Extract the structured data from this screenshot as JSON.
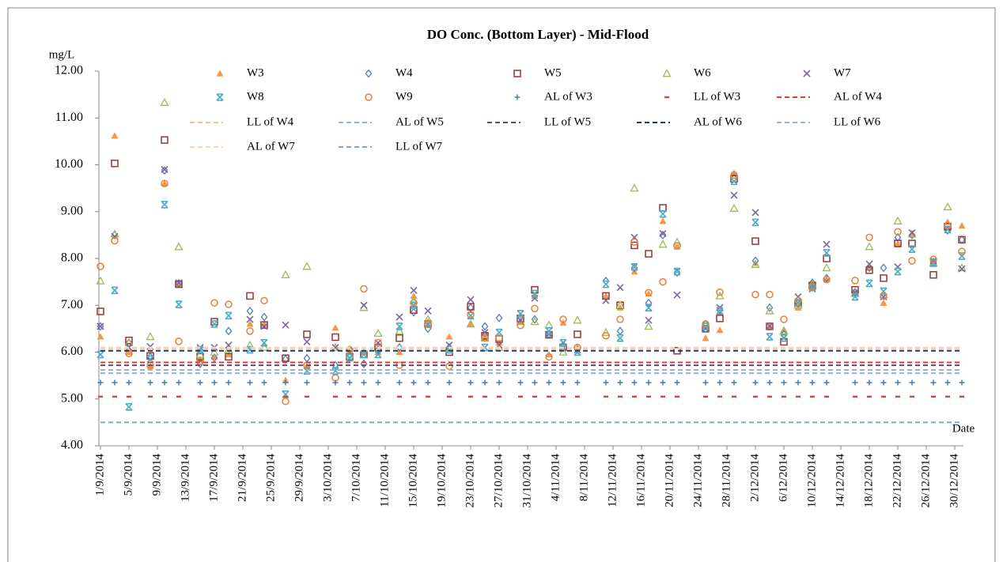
{
  "chart_data": {
    "type": "scatter",
    "title": "DO Conc. (Bottom Layer) - Mid-Flood",
    "y_label": "mg/L",
    "x_label": "Date",
    "xlim": [
      "1/9/2014",
      "31/12/2014"
    ],
    "xticks": [
      "1/9/2014",
      "5/9/2014",
      "9/9/2014",
      "13/9/2014",
      "17/9/2014",
      "21/9/2014",
      "25/9/2014",
      "29/9/2014",
      "3/10/2014",
      "7/10/2014",
      "11/10/2014",
      "15/10/2014",
      "19/10/2014",
      "23/10/2014",
      "27/10/2014",
      "31/10/2014",
      "4/11/2014",
      "8/11/2014",
      "12/11/2014",
      "16/11/2014",
      "20/11/2014",
      "24/11/2014",
      "28/11/2014",
      "2/12/2014",
      "6/12/2014",
      "10/12/2014",
      "14/12/2014",
      "18/12/2014",
      "22/12/2014",
      "26/12/2014",
      "30/12/2014"
    ],
    "ylim": [
      4,
      12
    ],
    "yticks": [
      {
        "value": 4,
        "label": "4.00"
      },
      {
        "value": 5,
        "label": "5.00"
      },
      {
        "value": 6,
        "label": "6.00"
      },
      {
        "value": 7,
        "label": "7.00"
      },
      {
        "value": 8,
        "label": "8.00"
      },
      {
        "value": 9,
        "label": "9.00"
      },
      {
        "value": 10,
        "label": "10.00"
      },
      {
        "value": 11,
        "label": "11.00"
      },
      {
        "value": 12,
        "label": "12.00"
      }
    ],
    "x": [
      "1/9/2014",
      "3/9/2014",
      "5/9/2014",
      "8/9/2014",
      "10/9/2014",
      "12/9/2014",
      "15/9/2014",
      "17/9/2014",
      "19/9/2014",
      "22/9/2014",
      "24/9/2014",
      "27/9/2014",
      "30/9/2014",
      "4/10/2014",
      "6/10/2014",
      "8/10/2014",
      "10/10/2014",
      "13/10/2014",
      "15/10/2014",
      "17/10/2014",
      "20/10/2014",
      "23/10/2014",
      "25/10/2014",
      "27/10/2014",
      "30/10/2014",
      "1/11/2014",
      "3/11/2014",
      "5/11/2014",
      "7/11/2014",
      "11/11/2014",
      "13/11/2014",
      "15/11/2014",
      "17/11/2014",
      "19/11/2014",
      "21/11/2014",
      "25/11/2014",
      "27/11/2014",
      "29/11/2014",
      "2/12/2014",
      "4/12/2014",
      "6/12/2014",
      "8/12/2014",
      "10/12/2014",
      "12/12/2014",
      "16/12/2014",
      "18/12/2014",
      "20/12/2014",
      "22/12/2014",
      "24/12/2014",
      "27/12/2014",
      "29/12/2014",
      "31/12/2014"
    ],
    "series": [
      {
        "name": "W3",
        "marker": "triangle-filled",
        "color": "#f79646",
        "values": [
          6.33,
          10.62,
          6.0,
          5.7,
          9.6,
          7.45,
          5.85,
          5.9,
          5.95,
          6.6,
          6.6,
          5.4,
          5.7,
          6.52,
          6.0,
          6.0,
          6.0,
          6.0,
          7.2,
          6.65,
          6.33,
          6.6,
          6.3,
          6.2,
          6.65,
          7.2,
          5.95,
          6.63,
          6.1,
          7.2,
          6.95,
          7.72,
          7.25,
          8.8,
          8.25,
          6.3,
          6.47,
          9.82,
          7.9,
          6.55,
          6.48,
          6.95,
          7.4,
          7.55,
          7.3,
          7.8,
          7.05,
          8.32,
          8.52,
          7.95,
          8.78,
          8.7
        ]
      },
      {
        "name": "W4",
        "marker": "diamond",
        "color": "#4f81bd",
        "values": [
          6.55,
          8.5,
          6.2,
          5.9,
          9.88,
          7.47,
          5.75,
          5.88,
          6.45,
          6.88,
          6.75,
          5.85,
          5.87,
          5.72,
          6.05,
          5.75,
          6.05,
          6.1,
          6.85,
          6.5,
          6.1,
          6.95,
          6.55,
          6.73,
          6.75,
          6.7,
          6.38,
          6.15,
          6.05,
          7.52,
          6.45,
          7.8,
          7.05,
          8.5,
          7.7,
          6.6,
          6.9,
          9.72,
          7.95,
          6.95,
          6.38,
          7.05,
          7.48,
          7.58,
          7.28,
          7.8,
          7.8,
          8.45,
          8.5,
          7.92,
          8.6,
          8.4
        ]
      },
      {
        "name": "W5",
        "marker": "square",
        "color": "#953735",
        "values": [
          6.87,
          10.03,
          6.25,
          5.92,
          10.53,
          7.45,
          5.9,
          6.65,
          5.9,
          7.2,
          6.58,
          5.87,
          6.38,
          6.32,
          5.9,
          5.95,
          6.1,
          6.3,
          6.9,
          6.6,
          6.0,
          6.97,
          6.35,
          6.28,
          6.72,
          7.33,
          6.37,
          6.1,
          6.38,
          7.2,
          7.0,
          8.28,
          8.1,
          9.08,
          6.03,
          6.5,
          6.72,
          9.7,
          8.37,
          6.55,
          6.22,
          7.05,
          7.42,
          8.0,
          7.33,
          7.75,
          7.58,
          8.32,
          8.32,
          7.65,
          8.68,
          8.4
        ]
      },
      {
        "name": "W6",
        "marker": "triangle",
        "color": "#9bbb59",
        "values": [
          7.52,
          8.52,
          6.2,
          6.33,
          11.33,
          8.25,
          5.95,
          6.0,
          6.05,
          6.15,
          6.1,
          7.65,
          7.83,
          6.1,
          5.95,
          6.95,
          6.4,
          6.45,
          7.1,
          6.7,
          6.05,
          6.6,
          6.3,
          6.1,
          6.65,
          6.65,
          6.58,
          6.0,
          6.68,
          6.42,
          7.0,
          9.5,
          6.55,
          8.3,
          8.35,
          6.6,
          7.2,
          9.07,
          7.87,
          6.88,
          6.45,
          7.0,
          7.45,
          7.8,
          7.25,
          8.25,
          7.22,
          8.8,
          8.52,
          7.9,
          9.1,
          7.8
        ]
      },
      {
        "name": "W7",
        "marker": "x",
        "color": "#8064a2",
        "values": [
          6.55,
          8.47,
          6.1,
          6.12,
          9.9,
          7.48,
          6.1,
          6.1,
          6.15,
          6.7,
          6.55,
          6.58,
          6.22,
          6.1,
          5.98,
          7.0,
          6.2,
          6.75,
          7.32,
          6.88,
          6.15,
          7.12,
          6.42,
          6.15,
          6.68,
          7.15,
          6.38,
          6.1,
          6.05,
          7.1,
          7.38,
          8.45,
          6.68,
          8.53,
          7.22,
          6.5,
          6.95,
          9.35,
          8.98,
          6.55,
          6.3,
          7.18,
          7.35,
          8.3,
          7.27,
          7.88,
          7.18,
          7.82,
          8.55,
          7.95,
          8.62,
          7.78
        ]
      },
      {
        "name": "W8",
        "marker": "asterisk",
        "color": "#4bacc6",
        "values": [
          5.95,
          7.32,
          4.83,
          5.85,
          9.15,
          7.02,
          6.05,
          6.6,
          6.78,
          6.05,
          6.2,
          5.1,
          5.6,
          5.6,
          5.88,
          5.95,
          5.95,
          6.55,
          7.0,
          6.6,
          6.05,
          6.78,
          6.1,
          6.42,
          6.82,
          7.25,
          6.45,
          6.2,
          6.0,
          7.45,
          6.3,
          7.82,
          6.95,
          8.95,
          7.72,
          6.55,
          6.88,
          9.65,
          8.77,
          6.33,
          6.3,
          7.05,
          7.38,
          8.12,
          7.18,
          7.47,
          7.3,
          7.72,
          8.2,
          7.9,
          8.62,
          8.05
        ]
      },
      {
        "name": "W9",
        "marker": "circle",
        "color": "#e4803a",
        "values": [
          7.83,
          8.38,
          5.97,
          5.72,
          9.6,
          6.23,
          5.8,
          7.05,
          7.02,
          6.45,
          7.1,
          4.95,
          5.72,
          5.45,
          6.05,
          7.35,
          6.2,
          5.72,
          7.05,
          6.6,
          5.7,
          6.8,
          6.3,
          6.3,
          6.57,
          6.93,
          5.9,
          6.7,
          6.1,
          6.35,
          6.7,
          8.35,
          7.27,
          7.5,
          8.27,
          6.6,
          7.28,
          9.78,
          7.23,
          7.23,
          6.7,
          7.1,
          7.4,
          7.55,
          7.53,
          8.45,
          7.2,
          8.57,
          7.95,
          7.98,
          8.7,
          8.15
        ]
      },
      {
        "name": "AL of W3",
        "style": "plus",
        "color": "#4f81bd",
        "value": 5.35
      },
      {
        "name": "LL of W3",
        "style": "dash",
        "color": "#c0504d",
        "value": 5.05
      },
      {
        "name": "AL of W4",
        "style": "dashed",
        "color": "#e03c31",
        "value": 5.78
      },
      {
        "name": "LL of W4",
        "style": "dashed",
        "color": "#fac090",
        "value": 6.08
      },
      {
        "name": "AL of W5",
        "style": "dashed",
        "color": "#8db4e2",
        "value": 5.55
      },
      {
        "name": "LL of W5",
        "style": "dashed",
        "color": "#604a7b",
        "value": 5.72
      },
      {
        "name": "AL of W6",
        "style": "dashed",
        "color": "#1f3864",
        "value": 6.03
      },
      {
        "name": "LL of W6",
        "style": "dashed",
        "color": "#93b3d7",
        "value": 5.62
      },
      {
        "name": "AL of W7",
        "style": "dashed",
        "color": "#fcd5b4",
        "value": 6.1
      },
      {
        "name": "LL of W7",
        "style": "dashed",
        "color": "#7fa7d6",
        "value": 4.5
      }
    ]
  }
}
